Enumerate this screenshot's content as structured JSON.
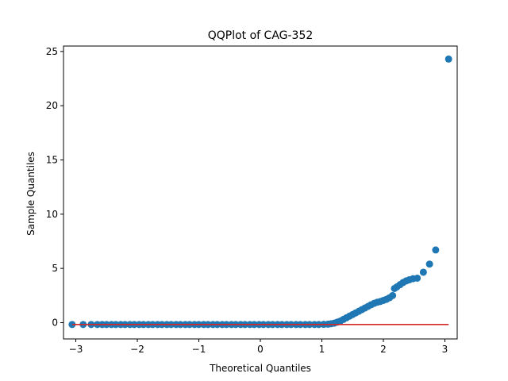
{
  "chart_data": {
    "type": "scatter",
    "title": "QQPlot of CAG-352",
    "xlabel": "Theoretical Quantiles",
    "ylabel": "Sample Quantiles",
    "xlim": [
      -3.2,
      3.2
    ],
    "ylim": [
      -1.5,
      25.5
    ],
    "xticks": [
      -3,
      -2,
      -1,
      0,
      1,
      2,
      3
    ],
    "yticks": [
      0,
      5,
      10,
      15,
      20,
      25
    ],
    "marker_color": "#1f77b4",
    "line_color": "#d62728",
    "reference_line": {
      "x": [
        -3.06,
        3.06
      ],
      "y": [
        -0.17,
        -0.17
      ]
    },
    "series": [
      {
        "x": [
          -3.06,
          -2.88,
          -2.75,
          -2.65,
          -2.57,
          -2.5,
          -2.42,
          -2.35,
          -2.27,
          -2.2,
          -2.12,
          -2.05,
          -1.97,
          -1.9,
          -1.82,
          -1.75,
          -1.67,
          -1.6,
          -1.52,
          -1.45,
          -1.37,
          -1.3,
          -1.22,
          -1.15,
          -1.07,
          -1.0,
          -0.92,
          -0.85,
          -0.77,
          -0.7,
          -0.62,
          -0.55,
          -0.47,
          -0.4,
          -0.32,
          -0.25,
          -0.17,
          -0.1,
          -0.02,
          0.05,
          0.13,
          0.2,
          0.28,
          0.35,
          0.43,
          0.5,
          0.58,
          0.65,
          0.73,
          0.8,
          0.88,
          0.95,
          1.03,
          1.1,
          1.15,
          1.2,
          1.25,
          1.3,
          1.35,
          1.4,
          1.45,
          1.5,
          1.55,
          1.6,
          1.65,
          1.7,
          1.75,
          1.8,
          1.85,
          1.9,
          1.95,
          2.0,
          2.05,
          2.1,
          2.15,
          2.18,
          2.22,
          2.27,
          2.32,
          2.37,
          2.42,
          2.48,
          2.55,
          2.65,
          2.75,
          2.85,
          3.06
        ],
        "y": [
          -0.17,
          -0.17,
          -0.17,
          -0.17,
          -0.17,
          -0.17,
          -0.17,
          -0.17,
          -0.17,
          -0.17,
          -0.17,
          -0.17,
          -0.17,
          -0.17,
          -0.17,
          -0.17,
          -0.17,
          -0.17,
          -0.17,
          -0.17,
          -0.17,
          -0.17,
          -0.17,
          -0.17,
          -0.17,
          -0.17,
          -0.17,
          -0.17,
          -0.17,
          -0.17,
          -0.17,
          -0.17,
          -0.17,
          -0.17,
          -0.17,
          -0.17,
          -0.17,
          -0.17,
          -0.17,
          -0.17,
          -0.17,
          -0.17,
          -0.17,
          -0.17,
          -0.17,
          -0.17,
          -0.17,
          -0.17,
          -0.17,
          -0.17,
          -0.17,
          -0.17,
          -0.16,
          -0.14,
          -0.1,
          -0.05,
          0.05,
          0.15,
          0.3,
          0.45,
          0.6,
          0.75,
          0.9,
          1.05,
          1.2,
          1.35,
          1.5,
          1.65,
          1.78,
          1.88,
          1.95,
          2.05,
          2.15,
          2.3,
          2.5,
          3.15,
          3.3,
          3.5,
          3.7,
          3.85,
          3.95,
          4.05,
          4.1,
          4.65,
          5.4,
          6.7,
          24.3
        ]
      }
    ]
  }
}
